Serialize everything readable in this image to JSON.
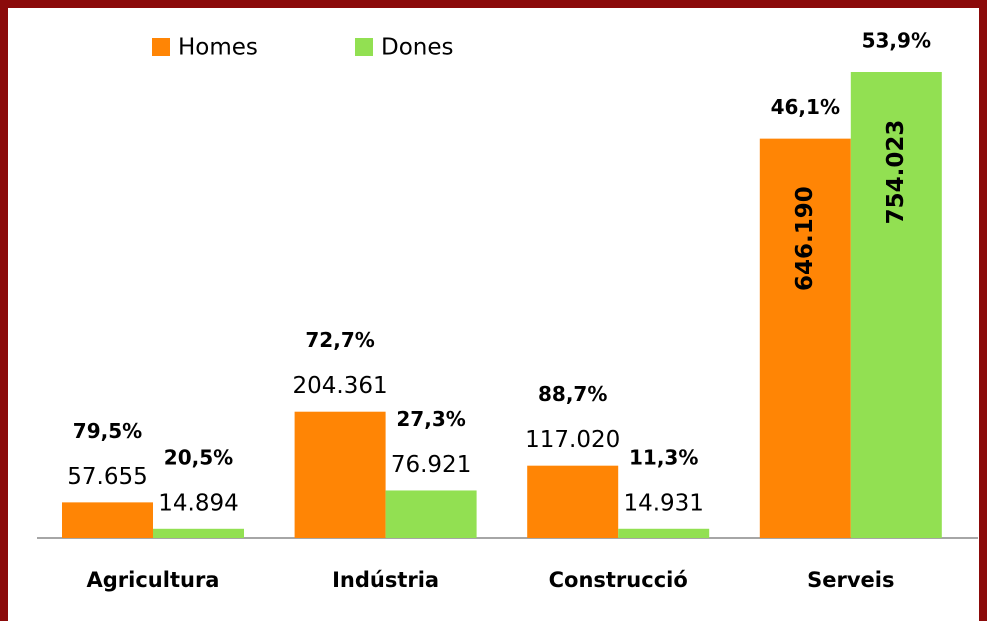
{
  "chart_data": {
    "type": "bar",
    "categories": [
      "Agricultura",
      "Indústria",
      "Construcció",
      "Serveis"
    ],
    "series": [
      {
        "name": "Homes",
        "color": "#ff8505",
        "values": [
          57655,
          204361,
          117020,
          646190
        ],
        "value_labels": [
          "57.655",
          "204.361",
          "117.020",
          "646.190"
        ],
        "percent_labels": [
          "79,5%",
          "72,7%",
          "88,7%",
          "46,1%"
        ]
      },
      {
        "name": "Dones",
        "color": "#92e052",
        "values": [
          14894,
          76921,
          14931,
          754023
        ],
        "value_labels": [
          "14.894",
          "76.921",
          "14.931",
          "754.023"
        ],
        "percent_labels": [
          "20,5%",
          "27,3%",
          "11,3%",
          "53,9%"
        ]
      }
    ],
    "legend": "top-left"
  }
}
